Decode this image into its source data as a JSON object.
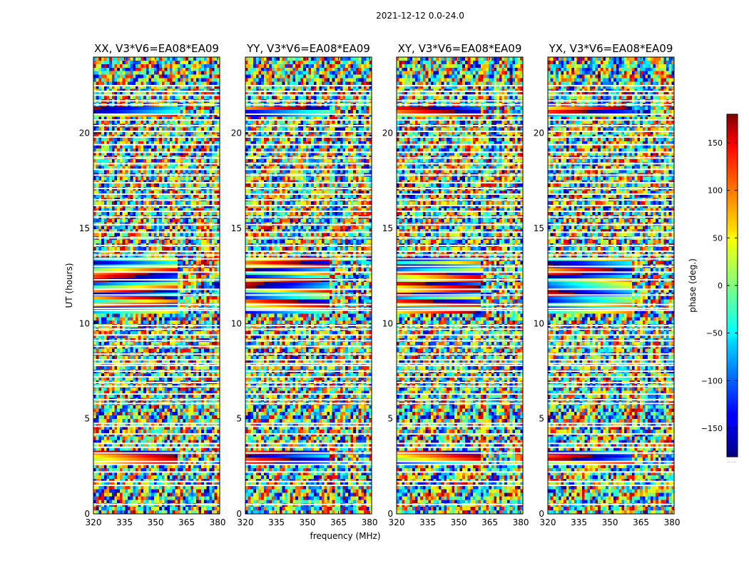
{
  "chart_data": {
    "type": "heatmap",
    "suptitle": "2021-12-12 0.0-24.0",
    "xlabel": "frequency (MHz)",
    "ylabel": "UT (hours)",
    "xlim": [
      320,
      381
    ],
    "ylim": [
      0,
      24
    ],
    "x_ticks": [
      320,
      335,
      350,
      365,
      380
    ],
    "y_ticks": [
      0,
      5,
      10,
      15,
      20
    ],
    "colormap": "jet",
    "colorbar": {
      "label": "phase (deg.)",
      "range": [
        -180,
        180
      ],
      "ticks": [
        -150,
        -100,
        -50,
        0,
        50,
        100,
        150
      ],
      "tick_labels": [
        "−150",
        "−100",
        "−50",
        "0",
        "50",
        "100",
        "150"
      ],
      "under_label": "......"
    },
    "panels": [
      {
        "title": "XX, V3*V6=EA08*EA09",
        "polarization": "XX",
        "baseline": "V3*V6=EA08*EA09"
      },
      {
        "title": "YY, V3*V6=EA08*EA09",
        "polarization": "YY",
        "baseline": "V3*V6=EA08*EA09"
      },
      {
        "title": "XY, V3*V6=EA08*EA09",
        "polarization": "XY",
        "baseline": "V3*V6=EA08*EA09"
      },
      {
        "title": "YX, V3*V6=EA08*EA09",
        "polarization": "YX",
        "baseline": "V3*V6=EA08*EA09"
      }
    ],
    "flagged_ut_hours": [
      0.5,
      1.5,
      1.7,
      2.2,
      2.6,
      2.75,
      3.2,
      3.5,
      3.7,
      4.2,
      4.6,
      4.75,
      5.8,
      6.0,
      6.3,
      6.7,
      6.9,
      7.2,
      7.5,
      7.8,
      7.9,
      8.1,
      8.4,
      8.8,
      9.1,
      9.4,
      9.7,
      9.9,
      10.7,
      10.8,
      11.0,
      11.5,
      11.8,
      12.3,
      12.7,
      13.0,
      13.4,
      13.6,
      13.8,
      14.1,
      14.5,
      14.8,
      15.2,
      15.6,
      15.9,
      16.2,
      16.5,
      16.8,
      17.1,
      17.4,
      17.8,
      18.1,
      18.4,
      18.7,
      19.0,
      19.4,
      19.8,
      20.1,
      20.4,
      20.7,
      21.0,
      21.5,
      21.7,
      22.0,
      22.2,
      22.5
    ],
    "coherent_bands_ut_hours": [
      [
        2.5,
        3.4
      ],
      [
        10.5,
        13.5
      ],
      [
        20.8,
        21.5
      ]
    ]
  }
}
